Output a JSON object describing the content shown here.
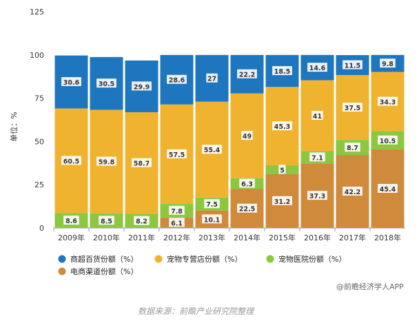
{
  "chart_data": {
    "type": "stacked-bar",
    "categories": [
      "2009年",
      "2010年",
      "2011年",
      "2012年",
      "2013年",
      "2014年",
      "2015年",
      "2016年",
      "2017年",
      "2018年"
    ],
    "series": [
      {
        "name": "电商渠道份额（%）",
        "color": "#D08A3C",
        "values": [
          0,
          0,
          0,
          6.1,
          10.1,
          22.5,
          31.2,
          37.3,
          42.2,
          45.4
        ],
        "labels": [
          "",
          "",
          "",
          "6.1",
          "10.1",
          "22.5",
          "31.2",
          "37.3",
          "42.2",
          "45.4"
        ]
      },
      {
        "name": "宠物医院份额（%）",
        "color": "#8DC63F",
        "values": [
          8.6,
          8.5,
          8.2,
          7.8,
          7.5,
          6.3,
          5,
          7.1,
          8.7,
          10.5
        ],
        "labels": [
          "8.6",
          "8.5",
          "8.2",
          "7.8",
          "7.5",
          "6.3",
          "5",
          "7.1",
          "8.7",
          "10.5"
        ]
      },
      {
        "name": "宠物专营店份额（%）",
        "color": "#F0B32F",
        "values": [
          60.5,
          59.8,
          58.7,
          57.5,
          55.4,
          49,
          45.3,
          41,
          37.5,
          34.3
        ],
        "labels": [
          "60.5",
          "59.8",
          "58.7",
          "57.5",
          "55.4",
          "49",
          "45.3",
          "41",
          "37.5",
          "34.3"
        ]
      },
      {
        "name": "商超百货份额（%）",
        "color": "#1E76BE",
        "values": [
          30.6,
          30.5,
          29.9,
          28.6,
          27,
          22.2,
          18.5,
          14.6,
          11.5,
          9.8
        ],
        "labels": [
          "30.6",
          "30.5",
          "29.9",
          "28.6",
          "27",
          "22.2",
          "18.5",
          "14.6",
          "11.5",
          "9.8"
        ]
      }
    ],
    "legend_order": [
      3,
      2,
      1,
      0
    ],
    "ylim": [
      0,
      125
    ],
    "yticks": [
      "0",
      "25",
      "50",
      "75",
      "100",
      "125"
    ],
    "ylabel": "单位：%",
    "xlabel": "",
    "grid": false,
    "legend_position": "bottom-left"
  },
  "watermark": "@前瞻经济学人APP",
  "source": "数据来源：前瞻产业研究院整理"
}
